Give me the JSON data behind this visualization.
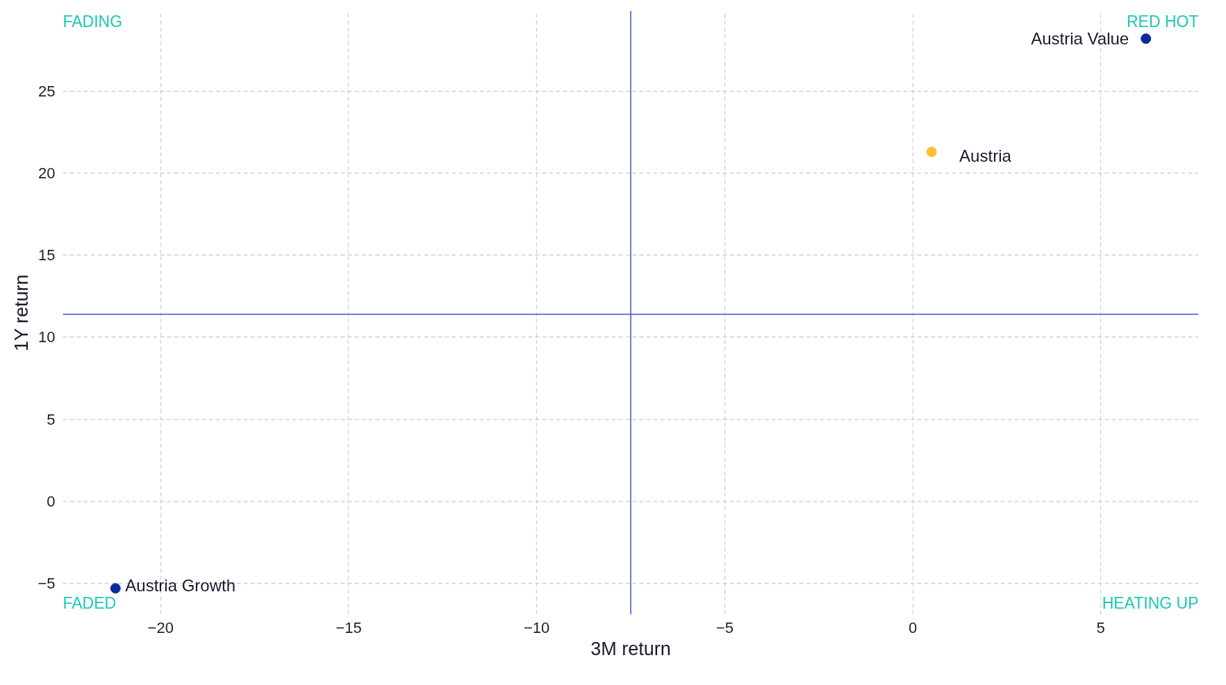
{
  "chart_data": {
    "type": "scatter",
    "xlabel": "3M return",
    "ylabel": "1Y return",
    "series": [
      {
        "name": "Austria Value",
        "color": "#0b2a9c",
        "x": [
          6.2
        ],
        "values": [
          28.2
        ]
      },
      {
        "name": "Austria",
        "color": "#f9c02f",
        "x": [
          0.5
        ],
        "values": [
          21.3
        ]
      },
      {
        "name": "Austria Growth",
        "color": "#0b2a9c",
        "x": [
          -21.2
        ],
        "values": [
          -5.3
        ]
      }
    ],
    "xlim": [
      -22.6,
      7.6
    ],
    "ylim": [
      -6.9,
      29.9
    ],
    "xticks": [
      {
        "value": -20,
        "label": "−20"
      },
      {
        "value": -15,
        "label": "−15"
      },
      {
        "value": -10,
        "label": "−10"
      },
      {
        "value": -5,
        "label": "−5"
      },
      0,
      5
    ],
    "yticks": [
      {
        "value": -5,
        "label": "−5"
      },
      0,
      5,
      10,
      15,
      20,
      25
    ],
    "ref_lines": [
      {
        "axis": "x",
        "value": -7.5,
        "color": "#3f51c9"
      },
      {
        "axis": "y",
        "value": 11.4,
        "color": "#3f51c9"
      }
    ],
    "annotations": [
      "FADING",
      "RED HOT",
      "FADED",
      "HEATING UP"
    ],
    "grid": true,
    "marker": "circle"
  }
}
